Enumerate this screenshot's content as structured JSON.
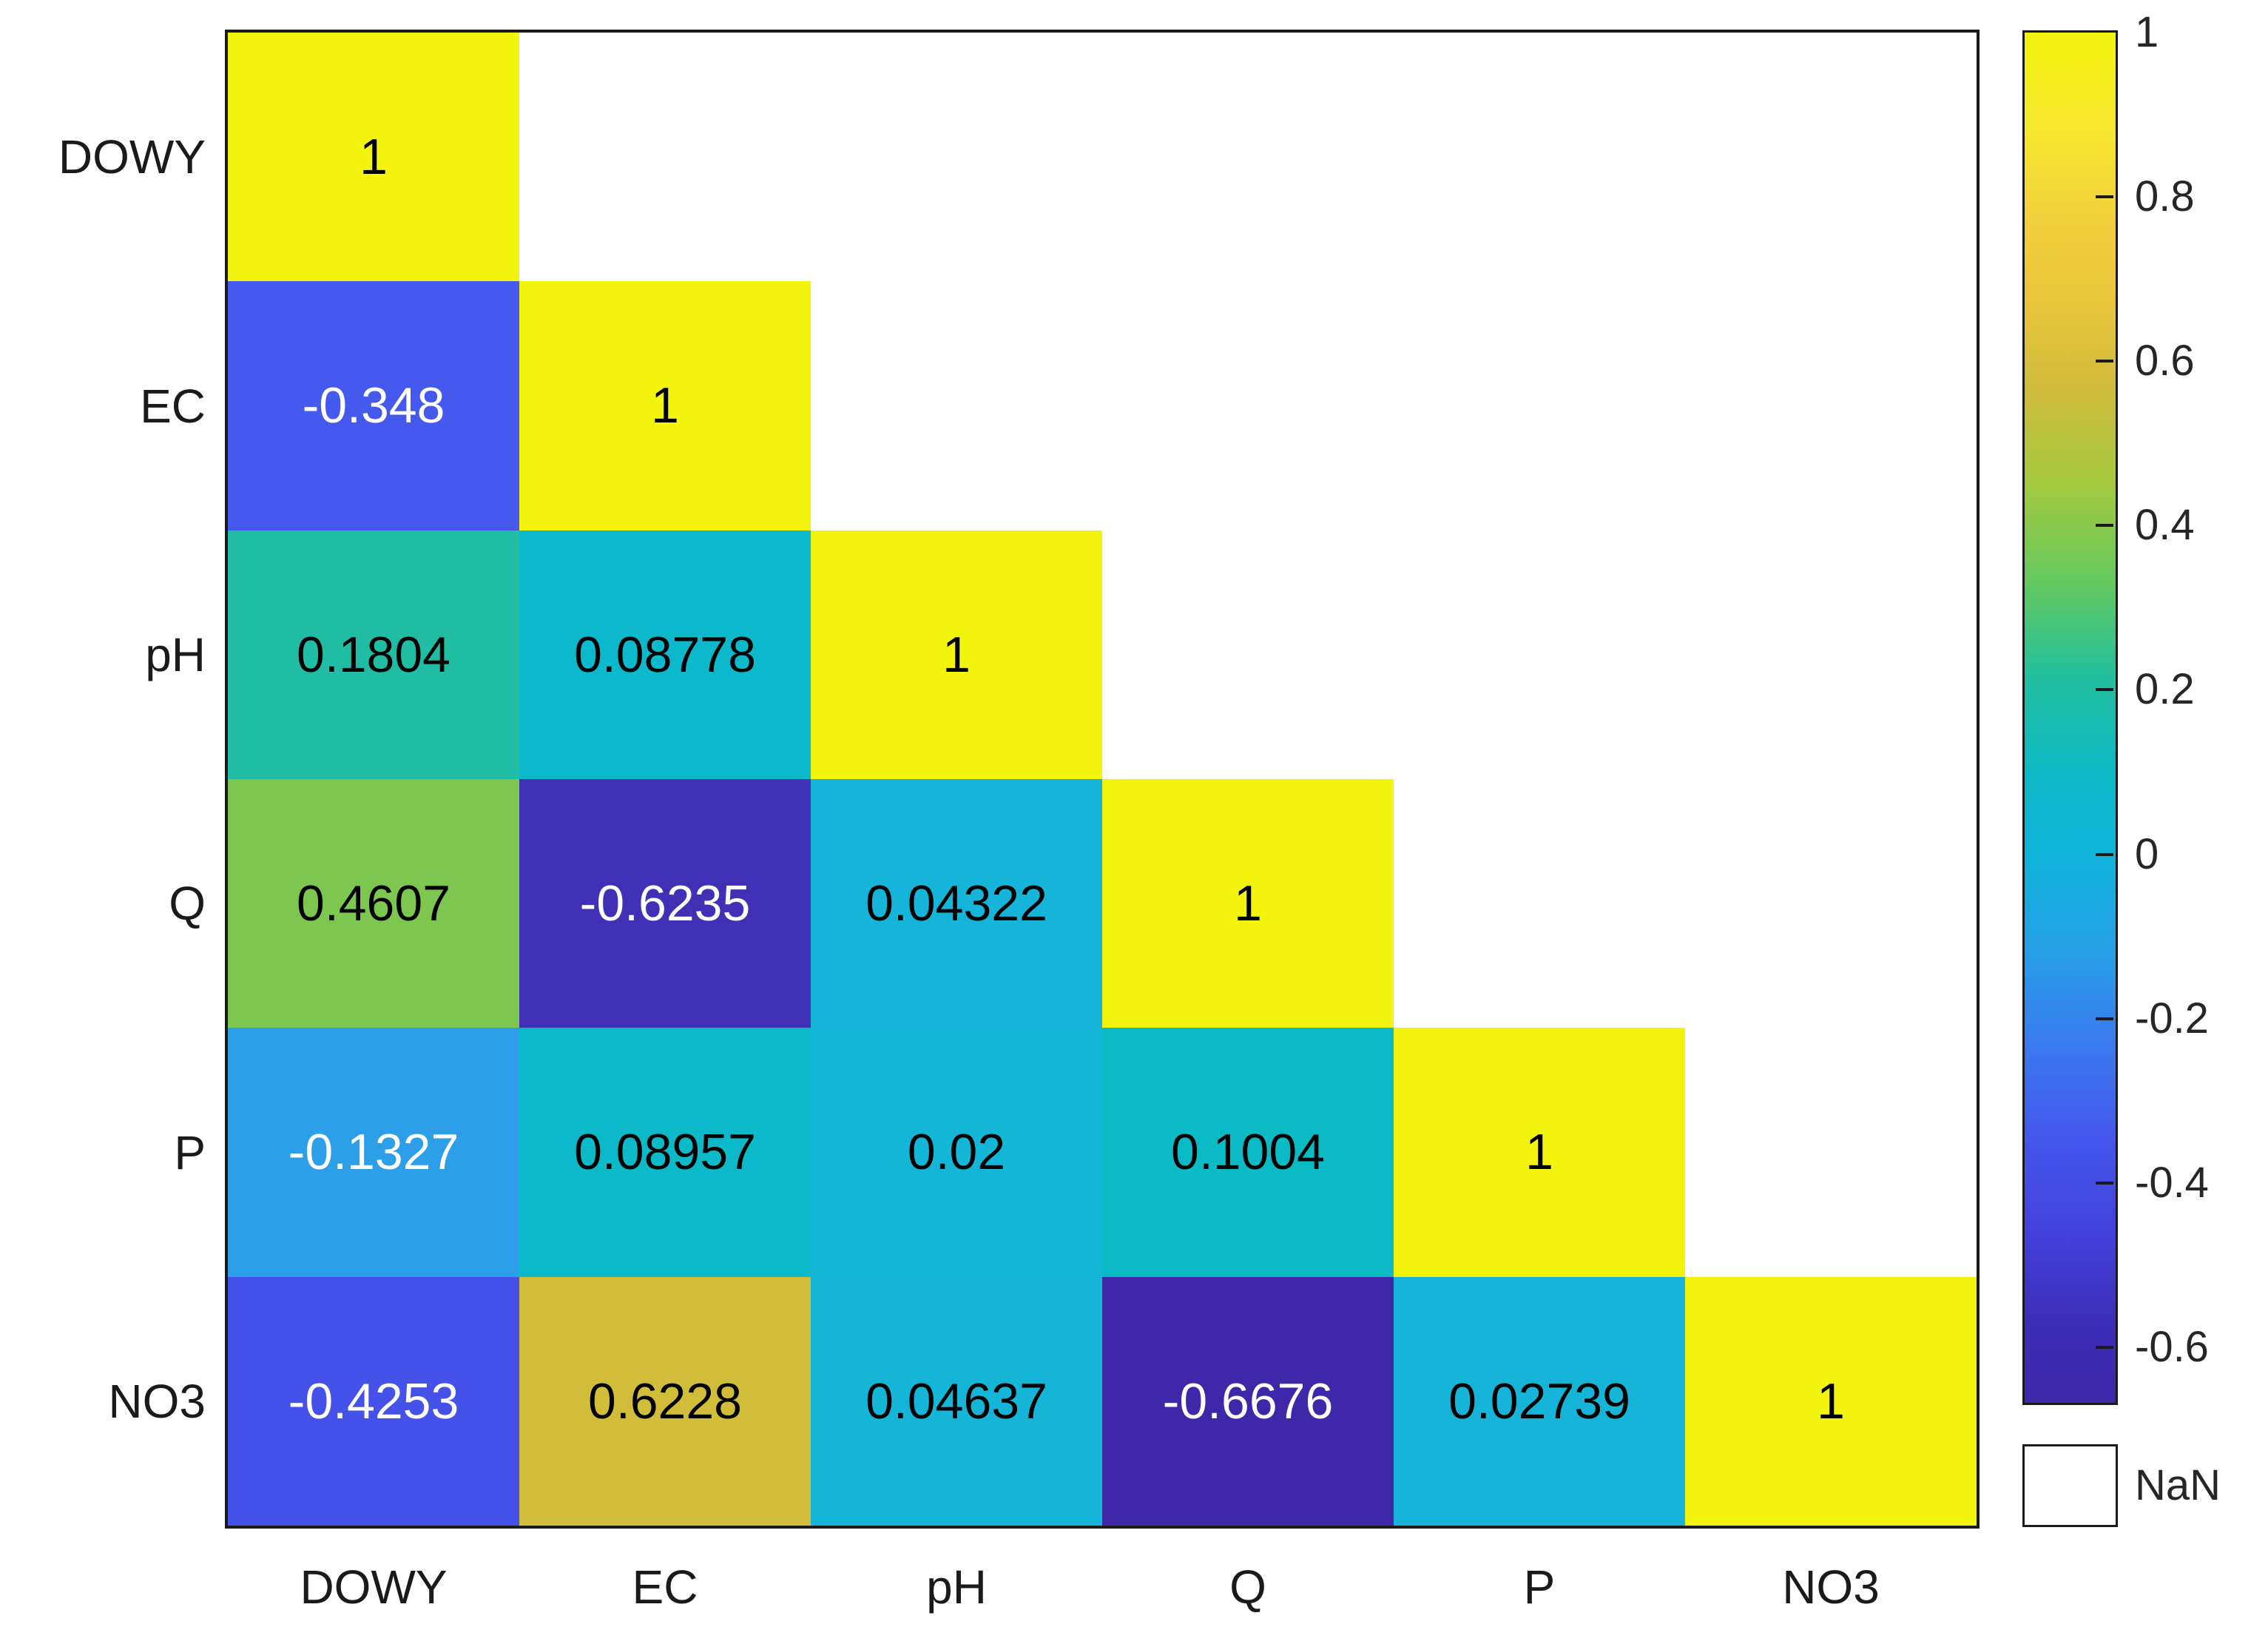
{
  "figure": {
    "background": "#ffffff",
    "border_color": "#1a1a1a"
  },
  "variables": [
    "DOWY",
    "EC",
    "pH",
    "Q",
    "P",
    "NO3"
  ],
  "matrix": {
    "rows": [
      {
        "row": "DOWY",
        "cells": [
          {
            "col": "DOWY",
            "label": "1",
            "bg": "#F3F40E",
            "fg": "#000000"
          }
        ]
      },
      {
        "row": "EC",
        "cells": [
          {
            "col": "DOWY",
            "label": "-0.348",
            "bg": "#4659EE",
            "fg": "#ffffff"
          },
          {
            "col": "EC",
            "label": "1",
            "bg": "#F3F40E",
            "fg": "#000000"
          }
        ]
      },
      {
        "row": "pH",
        "cells": [
          {
            "col": "DOWY",
            "label": "0.1804",
            "bg": "#20BDA4",
            "fg": "#000000"
          },
          {
            "col": "EC",
            "label": "0.08778",
            "bg": "#0CB8CC",
            "fg": "#000000"
          },
          {
            "col": "pH",
            "label": "1",
            "bg": "#F3F40E",
            "fg": "#000000"
          }
        ]
      },
      {
        "row": "Q",
        "cells": [
          {
            "col": "DOWY",
            "label": "0.4607",
            "bg": "#7DC750",
            "fg": "#000000"
          },
          {
            "col": "EC",
            "label": "-0.6235",
            "bg": "#4030B6",
            "fg": "#ffffff"
          },
          {
            "col": "pH",
            "label": "0.04322",
            "bg": "#16B4D9",
            "fg": "#000000"
          },
          {
            "col": "Q",
            "label": "1",
            "bg": "#F3F40E",
            "fg": "#000000"
          }
        ]
      },
      {
        "row": "P",
        "cells": [
          {
            "col": "DOWY",
            "label": "-0.1327",
            "bg": "#2D9FE8",
            "fg": "#ffffff"
          },
          {
            "col": "EC",
            "label": "0.08957",
            "bg": "#0BB9C9",
            "fg": "#000000"
          },
          {
            "col": "pH",
            "label": "0.02",
            "bg": "#13B6D6",
            "fg": "#000000"
          },
          {
            "col": "Q",
            "label": "0.1004",
            "bg": "#0ABAC5",
            "fg": "#000000"
          },
          {
            "col": "P",
            "label": "1",
            "bg": "#F3F40E",
            "fg": "#000000"
          }
        ]
      },
      {
        "row": "NO3",
        "cells": [
          {
            "col": "DOWY",
            "label": "-0.4253",
            "bg": "#4552EA",
            "fg": "#ffffff"
          },
          {
            "col": "EC",
            "label": "0.6228",
            "bg": "#D2BD3B",
            "fg": "#000000"
          },
          {
            "col": "pH",
            "label": "0.04637",
            "bg": "#15B5D8",
            "fg": "#000000"
          },
          {
            "col": "Q",
            "label": "-0.6676",
            "bg": "#3E27A9",
            "fg": "#ffffff"
          },
          {
            "col": "P",
            "label": "0.02739",
            "bg": "#17B4DA",
            "fg": "#000000"
          },
          {
            "col": "NO3",
            "label": "1",
            "bg": "#F3F40E",
            "fg": "#000000"
          }
        ]
      }
    ]
  },
  "colorbar": {
    "range_min": -0.6676,
    "range_max": 1,
    "colormap": "parula",
    "ticks": [
      {
        "label": "1",
        "value": 1
      },
      {
        "label": "0.8",
        "value": 0.8
      },
      {
        "label": "0.6",
        "value": 0.6
      },
      {
        "label": "0.4",
        "value": 0.4
      },
      {
        "label": "0.2",
        "value": 0.2
      },
      {
        "label": "0",
        "value": 0
      },
      {
        "label": "-0.2",
        "value": -0.2
      },
      {
        "label": "-0.4",
        "value": -0.4
      },
      {
        "label": "-0.6",
        "value": -0.6
      }
    ],
    "nan_label": "NaN"
  },
  "chart_data": {
    "type": "heatmap",
    "title": "",
    "xlabel": "",
    "ylabel": "",
    "categories": [
      "DOWY",
      "EC",
      "pH",
      "Q",
      "P",
      "NO3"
    ],
    "matrix_lower_triangle": [
      [
        1
      ],
      [
        -0.348,
        1
      ],
      [
        0.1804,
        0.08778,
        1
      ],
      [
        0.4607,
        -0.6235,
        0.04322,
        1
      ],
      [
        -0.1327,
        0.08957,
        0.02,
        0.1004,
        1
      ],
      [
        -0.4253,
        0.6228,
        0.04637,
        -0.6676,
        0.02739,
        1
      ]
    ],
    "upper_triangle_values": "NaN (rendered blank/white)",
    "colormap": "parula",
    "color_range": [
      -0.6676,
      1
    ],
    "colorbar_ticks": [
      1,
      0.8,
      0.6,
      0.4,
      0.2,
      0,
      -0.2,
      -0.4,
      -0.6
    ],
    "nan_legend": true,
    "grid": false,
    "legend_position": "right"
  }
}
